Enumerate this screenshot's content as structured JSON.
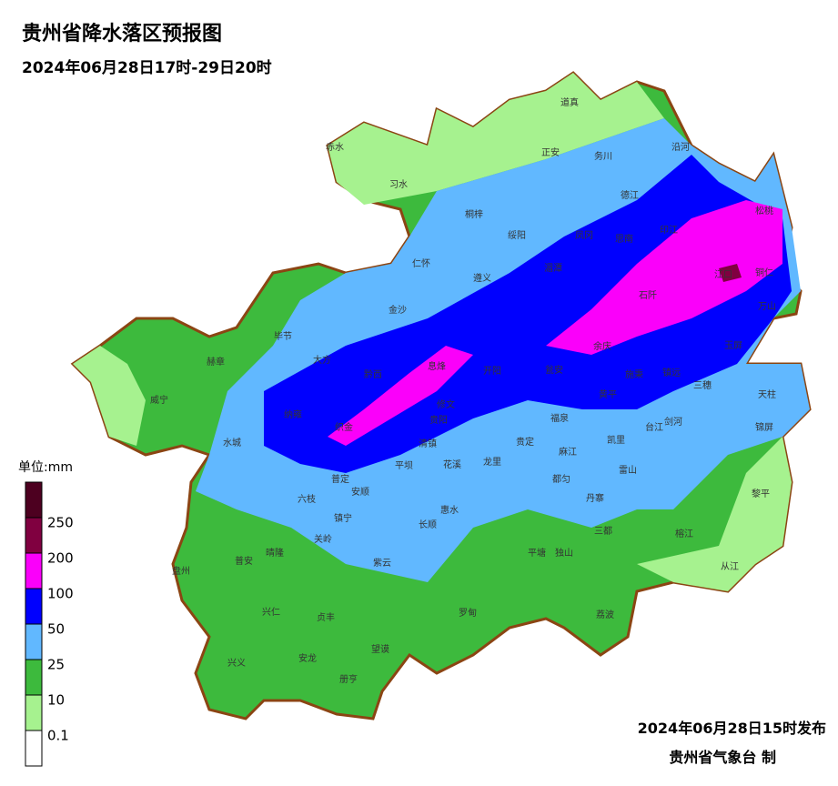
{
  "header": {
    "title": "贵州省降水落区预报图",
    "subtitle": "2024年06月28日17时-29日20时"
  },
  "legend": {
    "unit": "单位:mm",
    "levels": [
      0.1,
      10,
      25,
      50,
      100,
      200,
      250
    ],
    "colors": [
      "#ffffff",
      "#a6f28f",
      "#3dba3d",
      "#61b8ff",
      "#0000fe",
      "#fa00fa",
      "#800040",
      "#4d0020"
    ]
  },
  "counties": [
    "道真",
    "赤水",
    "正安",
    "务川",
    "沿河",
    "习水",
    "桐梓",
    "德江",
    "松桃",
    "绥阳",
    "凤冈",
    "印江",
    "思南",
    "仁怀",
    "湄潭",
    "江口",
    "铜仁",
    "遵义",
    "石阡",
    "万山",
    "金沙",
    "毕节",
    "余庆",
    "玉屏",
    "大方",
    "赫章",
    "黔西",
    "息烽",
    "开阳",
    "瓮安",
    "施秉",
    "镇远",
    "三穗",
    "天柱",
    "威宁",
    "黄平",
    "修文",
    "纳雍",
    "福泉",
    "台江",
    "剑河",
    "锦屏",
    "织金",
    "清镇",
    "贵阳",
    "贵定",
    "凯里",
    "麻江",
    "水城",
    "平坝",
    "龙里",
    "花溪",
    "普定",
    "雷山",
    "都匀",
    "安顺",
    "六枝",
    "黎平",
    "惠水",
    "丹寨",
    "镇宁",
    "长顺",
    "三都",
    "榕江",
    "关岭",
    "晴隆",
    "普安",
    "紫云",
    "平塘",
    "独山",
    "从江",
    "盘州",
    "兴仁",
    "贞丰",
    "罗甸",
    "荔波",
    "望谟",
    "兴义",
    "安龙",
    "册亨"
  ],
  "footer": {
    "issued": "2024年06月28日15时发布",
    "agency": "贵州省气象台 制"
  }
}
